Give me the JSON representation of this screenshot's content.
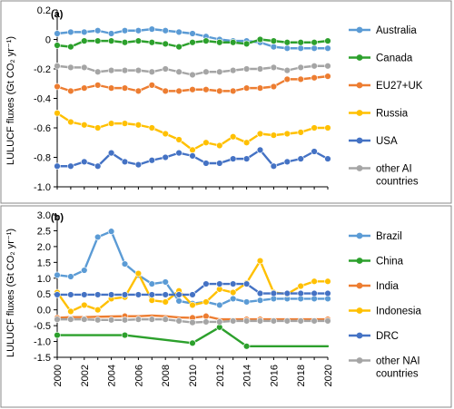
{
  "chart_data": [
    {
      "type": "line",
      "panel_label": "(a)",
      "ylabel": "LULUCF fluxes (Gt CO₂ yr⁻¹)",
      "ylim": [
        -1.0,
        0.2
      ],
      "yticks": [
        0.2,
        0.0,
        -0.2,
        -0.4,
        -0.6,
        -0.8,
        -1.0
      ],
      "ytick_labels": [
        "0.2",
        "0",
        "-0.2",
        "-0.4",
        "-0.6",
        "-0.8",
        "-1.0"
      ],
      "x": [
        2000,
        2001,
        2002,
        2003,
        2004,
        2005,
        2006,
        2007,
        2008,
        2009,
        2010,
        2011,
        2012,
        2013,
        2014,
        2015,
        2016,
        2017,
        2018,
        2019,
        2020
      ],
      "series": [
        {
          "name": "Australia",
          "color": "#5b9bd5",
          "values": [
            0.04,
            0.05,
            0.05,
            0.06,
            0.04,
            0.06,
            0.06,
            0.07,
            0.06,
            0.05,
            0.04,
            0.02,
            0.0,
            -0.01,
            -0.01,
            -0.02,
            -0.05,
            -0.06,
            -0.06,
            -0.06,
            -0.06
          ]
        },
        {
          "name": "Canada",
          "color": "#2ca02c",
          "values": [
            -0.04,
            -0.05,
            -0.01,
            -0.01,
            -0.01,
            -0.02,
            -0.01,
            -0.02,
            -0.03,
            -0.05,
            -0.02,
            -0.01,
            -0.02,
            -0.02,
            -0.03,
            0.0,
            -0.01,
            -0.02,
            -0.02,
            -0.02,
            -0.01
          ]
        },
        {
          "name": "EU27+UK",
          "color": "#ed7d31",
          "values": [
            -0.32,
            -0.35,
            -0.33,
            -0.31,
            -0.33,
            -0.33,
            -0.35,
            -0.31,
            -0.35,
            -0.35,
            -0.34,
            -0.34,
            -0.35,
            -0.35,
            -0.33,
            -0.33,
            -0.32,
            -0.27,
            -0.27,
            -0.26,
            -0.25
          ]
        },
        {
          "name": "Russia",
          "color": "#ffc000",
          "values": [
            -0.5,
            -0.56,
            -0.58,
            -0.6,
            -0.57,
            -0.57,
            -0.58,
            -0.6,
            -0.64,
            -0.68,
            -0.75,
            -0.7,
            -0.72,
            -0.66,
            -0.7,
            -0.64,
            -0.65,
            -0.64,
            -0.63,
            -0.6,
            -0.6
          ]
        },
        {
          "name": "USA",
          "color": "#4472c4",
          "values": [
            -0.86,
            -0.86,
            -0.83,
            -0.86,
            -0.77,
            -0.83,
            -0.85,
            -0.82,
            -0.8,
            -0.77,
            -0.79,
            -0.84,
            -0.84,
            -0.81,
            -0.81,
            -0.75,
            -0.86,
            -0.83,
            -0.81,
            -0.76,
            -0.81
          ]
        },
        {
          "name": "other AI countries",
          "color": "#a5a5a5",
          "values": [
            -0.18,
            -0.19,
            -0.19,
            -0.22,
            -0.21,
            -0.21,
            -0.21,
            -0.22,
            -0.2,
            -0.22,
            -0.24,
            -0.22,
            -0.22,
            -0.21,
            -0.2,
            -0.2,
            -0.19,
            -0.21,
            -0.19,
            -0.18,
            -0.18
          ]
        }
      ]
    },
    {
      "type": "line",
      "panel_label": "(b)",
      "ylabel": "LULUCF fluxes (Gt CO₂ yr⁻¹)",
      "xlabel": "",
      "ylim": [
        -1.5,
        3.0
      ],
      "yticks": [
        3.0,
        2.5,
        2.0,
        1.5,
        1.0,
        0.5,
        0.0,
        -0.5,
        -1.0,
        -1.5
      ],
      "ytick_labels": [
        "3.0",
        "2.5",
        "2.0",
        "1.5",
        "1.0",
        "0.5",
        "0.0",
        "-0.5",
        "-1.0",
        "-1.5"
      ],
      "x": [
        2000,
        2001,
        2002,
        2003,
        2004,
        2005,
        2006,
        2007,
        2008,
        2009,
        2010,
        2011,
        2012,
        2013,
        2014,
        2015,
        2016,
        2017,
        2018,
        2019,
        2020
      ],
      "xticks": [
        2000,
        2002,
        2004,
        2006,
        2008,
        2010,
        2012,
        2014,
        2016,
        2018,
        2020
      ],
      "series": [
        {
          "name": "Brazil",
          "color": "#5b9bd5",
          "markers": true,
          "values": [
            1.1,
            1.05,
            1.25,
            2.3,
            2.48,
            1.45,
            1.1,
            0.82,
            0.88,
            0.28,
            0.2,
            0.25,
            0.15,
            0.35,
            0.25,
            0.3,
            0.35,
            0.35,
            0.35,
            0.35,
            0.35
          ]
        },
        {
          "name": "China",
          "color": "#2ca02c",
          "markers": false,
          "marker_years": [
            2000,
            2005,
            2010,
            2012,
            2014
          ],
          "values": [
            -0.8,
            -0.8,
            -0.8,
            -0.8,
            -0.8,
            -0.8,
            -0.85,
            -0.9,
            -0.95,
            -1.0,
            -1.05,
            -0.8,
            -0.55,
            -0.85,
            -1.15,
            -1.15,
            -1.15,
            -1.15,
            -1.15,
            -1.15,
            -1.15
          ]
        },
        {
          "name": "India",
          "color": "#ed7d31",
          "markers": false,
          "marker_years": [
            2000,
            2005,
            2010,
            2011,
            2014,
            2015,
            2020
          ],
          "values": [
            -0.25,
            -0.23,
            -0.23,
            -0.22,
            -0.21,
            -0.2,
            -0.2,
            -0.18,
            -0.2,
            -0.24,
            -0.25,
            -0.2,
            -0.3,
            -0.3,
            -0.3,
            -0.3,
            -0.3,
            -0.3,
            -0.3,
            -0.3,
            -0.3
          ]
        },
        {
          "name": "Indonesia",
          "color": "#ffc000",
          "markers": true,
          "values": [
            0.55,
            -0.05,
            0.15,
            0.0,
            0.35,
            0.4,
            1.15,
            0.3,
            0.25,
            0.6,
            0.15,
            0.25,
            0.65,
            0.55,
            0.85,
            1.55,
            0.55,
            0.5,
            0.75,
            0.9,
            0.9
          ]
        },
        {
          "name": "DRC",
          "color": "#4472c4",
          "markers": true,
          "values": [
            0.48,
            0.48,
            0.48,
            0.48,
            0.48,
            0.48,
            0.48,
            0.48,
            0.48,
            0.48,
            0.48,
            0.82,
            0.82,
            0.82,
            0.82,
            0.52,
            0.52,
            0.52,
            0.52,
            0.52,
            0.52
          ]
        },
        {
          "name": "other NAI countries",
          "color": "#a5a5a5",
          "markers": true,
          "values": [
            -0.3,
            -0.3,
            -0.3,
            -0.32,
            -0.32,
            -0.32,
            -0.3,
            -0.3,
            -0.3,
            -0.35,
            -0.4,
            -0.38,
            -0.38,
            -0.35,
            -0.35,
            -0.35,
            -0.35,
            -0.35,
            -0.35,
            -0.35,
            -0.35
          ]
        }
      ]
    }
  ]
}
